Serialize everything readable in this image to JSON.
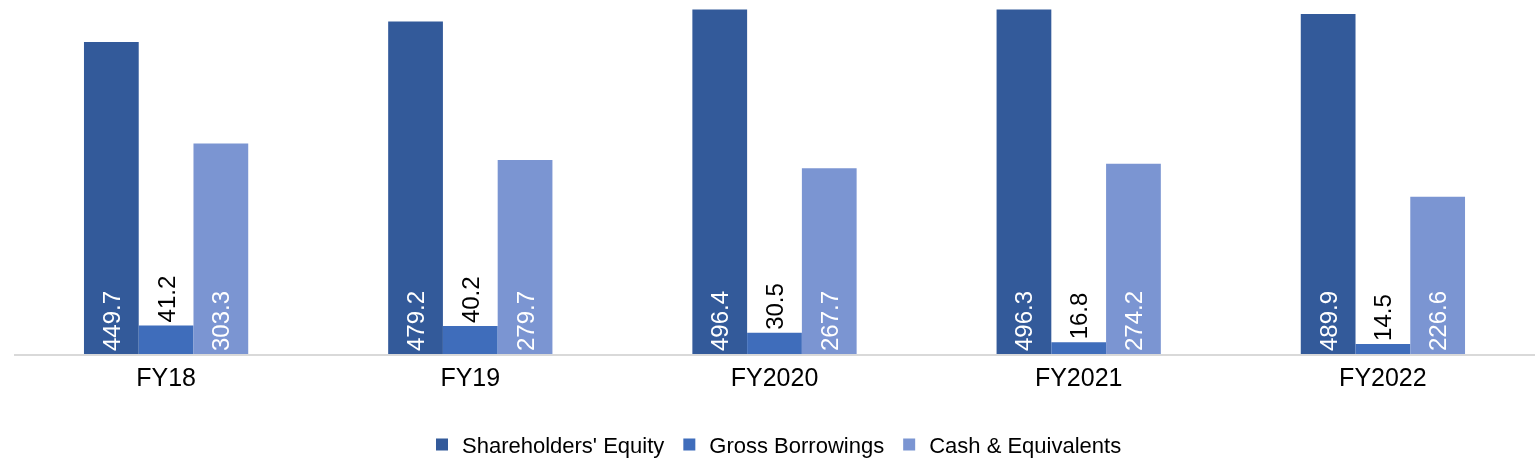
{
  "chart_data": {
    "type": "bar",
    "categories": [
      "FY18",
      "FY19",
      "FY2020",
      "FY2021",
      "FY2022"
    ],
    "series": [
      {
        "name": "Shareholders' Equity",
        "color": "#335a9a",
        "values": [
          449.7,
          479.2,
          496.4,
          496.3,
          489.9
        ]
      },
      {
        "name": "Gross Borrowings",
        "color": "#3f6dbb",
        "values": [
          41.2,
          40.2,
          30.5,
          16.8,
          14.5
        ]
      },
      {
        "name": "Cash & Equivalents",
        "color": "#7b95d2",
        "values": [
          303.3,
          279.7,
          267.7,
          274.2,
          226.6
        ]
      }
    ],
    "data_labels": true,
    "legend": "bottom",
    "grid": false
  }
}
